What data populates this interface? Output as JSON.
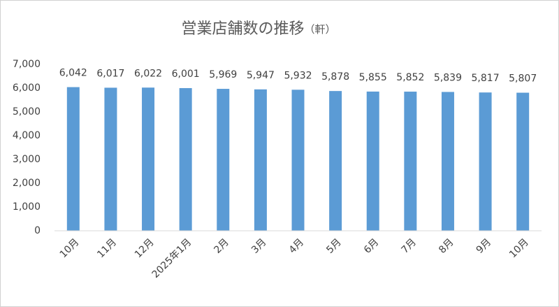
{
  "chart_data": {
    "type": "bar",
    "title": "営業店舗数の推移",
    "unit": "（軒）",
    "categories": [
      "10月",
      "11月",
      "12月",
      "2025年1月",
      "2月",
      "3月",
      "4月",
      "5月",
      "6月",
      "7月",
      "8月",
      "9月",
      "10月"
    ],
    "values": [
      6042,
      6017,
      6022,
      6001,
      5969,
      5947,
      5932,
      5878,
      5855,
      5852,
      5839,
      5817,
      5807
    ],
    "value_labels": [
      "6,042",
      "6,017",
      "6,022",
      "6,001",
      "5,969",
      "5,947",
      "5,932",
      "5,878",
      "5,855",
      "5,852",
      "5,839",
      "5,817",
      "5,807"
    ],
    "color": "#5b9bd5",
    "ylim": [
      0,
      7000
    ],
    "yticks": [
      0,
      {
        "value": 1000,
        "label": "1,000"
      },
      {
        "value": 2000,
        "label": "2,000"
      },
      {
        "value": 3000,
        "label": "3,000"
      },
      {
        "value": 4000,
        "label": "4,000"
      },
      {
        "value": 5000,
        "label": "5,000"
      },
      {
        "value": 6000,
        "label": "6,000"
      },
      {
        "value": 7000,
        "label": "7,000"
      }
    ],
    "grid": false
  }
}
